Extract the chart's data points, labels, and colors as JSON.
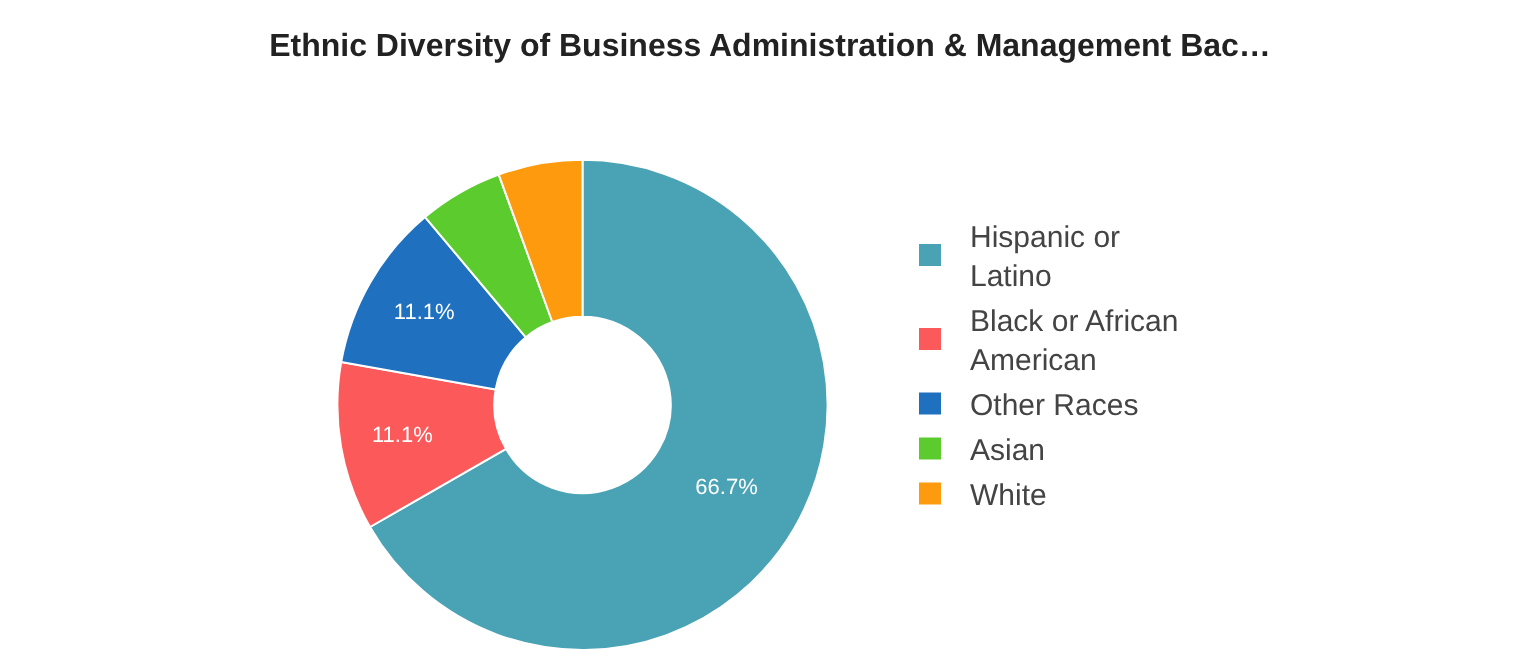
{
  "chart_data": {
    "type": "donut",
    "title": "Ethnic Diversity of Business Administration & Management Bac…",
    "categories": [
      "Hispanic or Latino",
      "Black or African American",
      "Other Races",
      "Asian",
      "White"
    ],
    "values": [
      66.7,
      11.1,
      11.1,
      5.55,
      5.55
    ],
    "colors": [
      "#4aa3b5",
      "#fc5a5a",
      "#1f71c0",
      "#5ccb2e",
      "#fd9a0d"
    ],
    "value_labels": [
      "66.7%",
      "11.1%",
      "11.1%",
      null,
      null
    ],
    "legend": "right"
  }
}
